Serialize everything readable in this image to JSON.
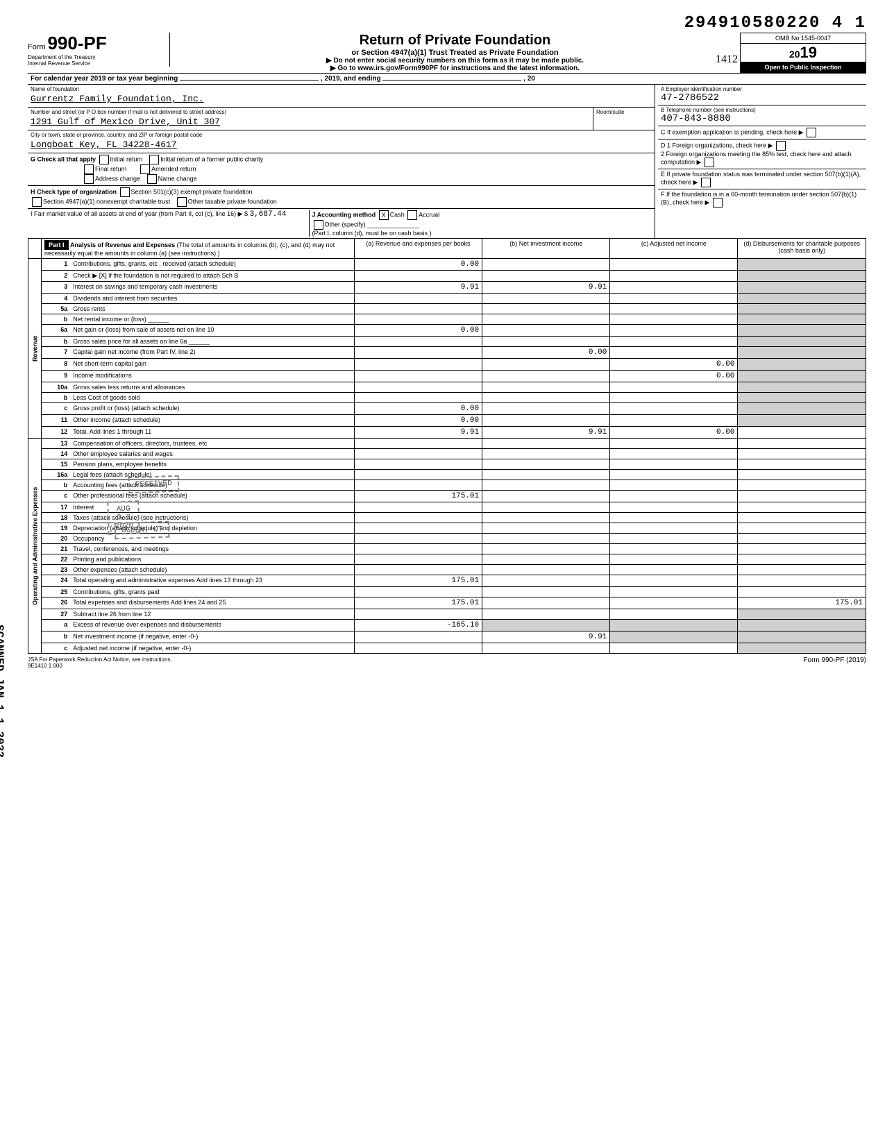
{
  "dln": "294910580220 4  1",
  "form_label": "Form",
  "form_number": "990-PF",
  "dept1": "Department of the Treasury",
  "dept2": "Internal Revenue Service",
  "title_main": "Return of Private Foundation",
  "title_sub": "or Section 4947(a)(1) Trust Treated as Private Foundation",
  "arrow1": "▶ Do not enter social security numbers on this form as it may be made public.",
  "arrow2": "▶ Go to www.irs.gov/Form990PF for instructions and the latest information.",
  "omb": "OMB No  1545-0047",
  "year_prefix": "20",
  "year_suffix": "19",
  "open_inspect": "Open to Public Inspection",
  "cal_year": "For calendar year 2019 or tax year beginning",
  "cal_year_mid": ", 2019, and ending",
  "cal_year_end": ", 20",
  "name_label": "Name of foundation",
  "foundation_name": "Gurrentz Family Foundation, Inc.",
  "addr_label": "Number and street (or P O  box number if mail is not delivered to street address)",
  "room_label": "Room/suite",
  "street": "1291 Gulf of Mexico Drive, Unit 307",
  "city_label": "City or town, state or province, country, and ZIP or foreign postal code",
  "city": "Longboat Key, FL  34228-4617",
  "ein_label": "A  Employer identification number",
  "ein": "47-2786522",
  "phone_label": "B  Telephone number (see instructions)",
  "phone": "407-843-8880",
  "c_label": "C  If exemption application is pending, check here",
  "d1": "D  1  Foreign organizations, check here",
  "d2": "2  Foreign organizations meeting the 85% test, check here and attach computation",
  "e_label": "E  If private foundation status was terminated under section 507(b)(1)(A), check here",
  "f_label": "F  If the foundation is in a 60-month termination under section 507(b)(1)(B), check here",
  "g_label": "G  Check all that apply",
  "g_opts": [
    "Initial return",
    "Initial return of a former public charity",
    "Final return",
    "Amended return",
    "Address change",
    "Name change"
  ],
  "h_label": "H  Check type of organization",
  "h_opts": [
    "Section 501(c)(3) exempt private foundation",
    "Section 4947(a)(1) nonexempt charitable trust",
    "Other taxable private foundation"
  ],
  "i_label": "I  Fair market value of all assets at end of year  (from Part II, col  (c), line 16) ▶ $",
  "i_value": "3,687.44",
  "j_label": "J  Accounting method",
  "j_cash": "Cash",
  "j_accrual": "Accrual",
  "j_other": "Other (specify)",
  "j_note": "(Part I, column (d), must be on cash basis )",
  "part1_label": "Part I",
  "part1_title": "Analysis of Revenue and Expenses",
  "part1_note": "(The total of amounts in columns (b), (c), and (d) may not necessarily equal the amounts in column (a) (see instructions) )",
  "col_a": "(a) Revenue and expenses per books",
  "col_b": "(b) Net investment income",
  "col_c": "(c) Adjusted net income",
  "col_d": "(d) Disbursements for charitable purposes (cash basis only)",
  "side_revenue": "Revenue",
  "side_expenses": "Operating and Administrative Expenses",
  "rows": [
    {
      "n": "1",
      "d": "Contributions, gifts, grants, etc , received (attach schedule)",
      "a": "0.00"
    },
    {
      "n": "2",
      "d": "Check ▶ [X] if the foundation is not required to attach Sch B"
    },
    {
      "n": "3",
      "d": "Interest on savings and temporary cash investments",
      "a": "9.91",
      "b": "9.91"
    },
    {
      "n": "4",
      "d": "Dividends and interest from securities"
    },
    {
      "n": "5a",
      "d": "Gross rents"
    },
    {
      "n": "b",
      "d": "Net rental income or (loss) ______"
    },
    {
      "n": "6a",
      "d": "Net gain or (loss) from sale of assets not on line 10",
      "a": "0.00"
    },
    {
      "n": "b",
      "d": "Gross sales price for all assets on line 6a ______"
    },
    {
      "n": "7",
      "d": "Capital gain net income (from Part IV, line 2)",
      "b": "0.00"
    },
    {
      "n": "8",
      "d": "Net short-term capital gain",
      "c": "0.00"
    },
    {
      "n": "9",
      "d": "Income modifications",
      "c": "0.00"
    },
    {
      "n": "10a",
      "d": "Gross sales less returns and allowances"
    },
    {
      "n": "b",
      "d": "Less  Cost of goods sold"
    },
    {
      "n": "c",
      "d": "Gross profit or (loss) (attach schedule)",
      "a": "0.00"
    },
    {
      "n": "11",
      "d": "Other income (attach schedule)",
      "a": "0.00"
    },
    {
      "n": "12",
      "d": "Total. Add lines 1 through 11",
      "a": "9.91",
      "b": "9.91",
      "c": "0.00"
    }
  ],
  "exp_rows": [
    {
      "n": "13",
      "d": "Compensation of officers, directors, trustees, etc"
    },
    {
      "n": "14",
      "d": "Other employee salaries and wages"
    },
    {
      "n": "15",
      "d": "Pension plans, employee benefits"
    },
    {
      "n": "16a",
      "d": "Legal fees (attach schedule)"
    },
    {
      "n": "b",
      "d": "Accounting fees (attach schedule)"
    },
    {
      "n": "c",
      "d": "Other professional fees (attach schedule)",
      "a": "175.01"
    },
    {
      "n": "17",
      "d": "Interest"
    },
    {
      "n": "18",
      "d": "Taxes (attach schedule) (see instructions)"
    },
    {
      "n": "19",
      "d": "Depreciation (attach schedule) and depletion"
    },
    {
      "n": "20",
      "d": "Occupancy"
    },
    {
      "n": "21",
      "d": "Travel, conferences, and meetings"
    },
    {
      "n": "22",
      "d": "Printing and publications"
    },
    {
      "n": "23",
      "d": "Other expenses (attach schedule)"
    },
    {
      "n": "24",
      "d": "Total operating and administrative expenses Add lines 13 through 23",
      "a": "175.01"
    },
    {
      "n": "25",
      "d": "Contributions, gifts, grants paid"
    },
    {
      "n": "26",
      "d": "Total expenses and disbursements  Add lines 24 and 25",
      "a": "175.01",
      "dd": "175.01"
    },
    {
      "n": "27",
      "d": "Subtract line 26 from line 12"
    },
    {
      "n": "a",
      "d": "Excess of revenue over expenses and disbursements",
      "a": "-165.10"
    },
    {
      "n": "b",
      "d": "Net investment income (if negative, enter -0-)",
      "b": "9.91"
    },
    {
      "n": "c",
      "d": "Adjusted net income (if negative, enter -0-)"
    }
  ],
  "stamp_received": "RECEIVED",
  "stamp_date": "AUG  0 3 2020",
  "stamp_loc": "OGDEN, UT",
  "vertical_text": "SCANNED JAN 1 1 2022",
  "footer_left": "JSA  For Paperwork Reduction Act Notice, see instructions.",
  "footer_left2": "9E1410 1 000",
  "footer_right": "Form 990-PF (2019)",
  "handwritten": "1412"
}
